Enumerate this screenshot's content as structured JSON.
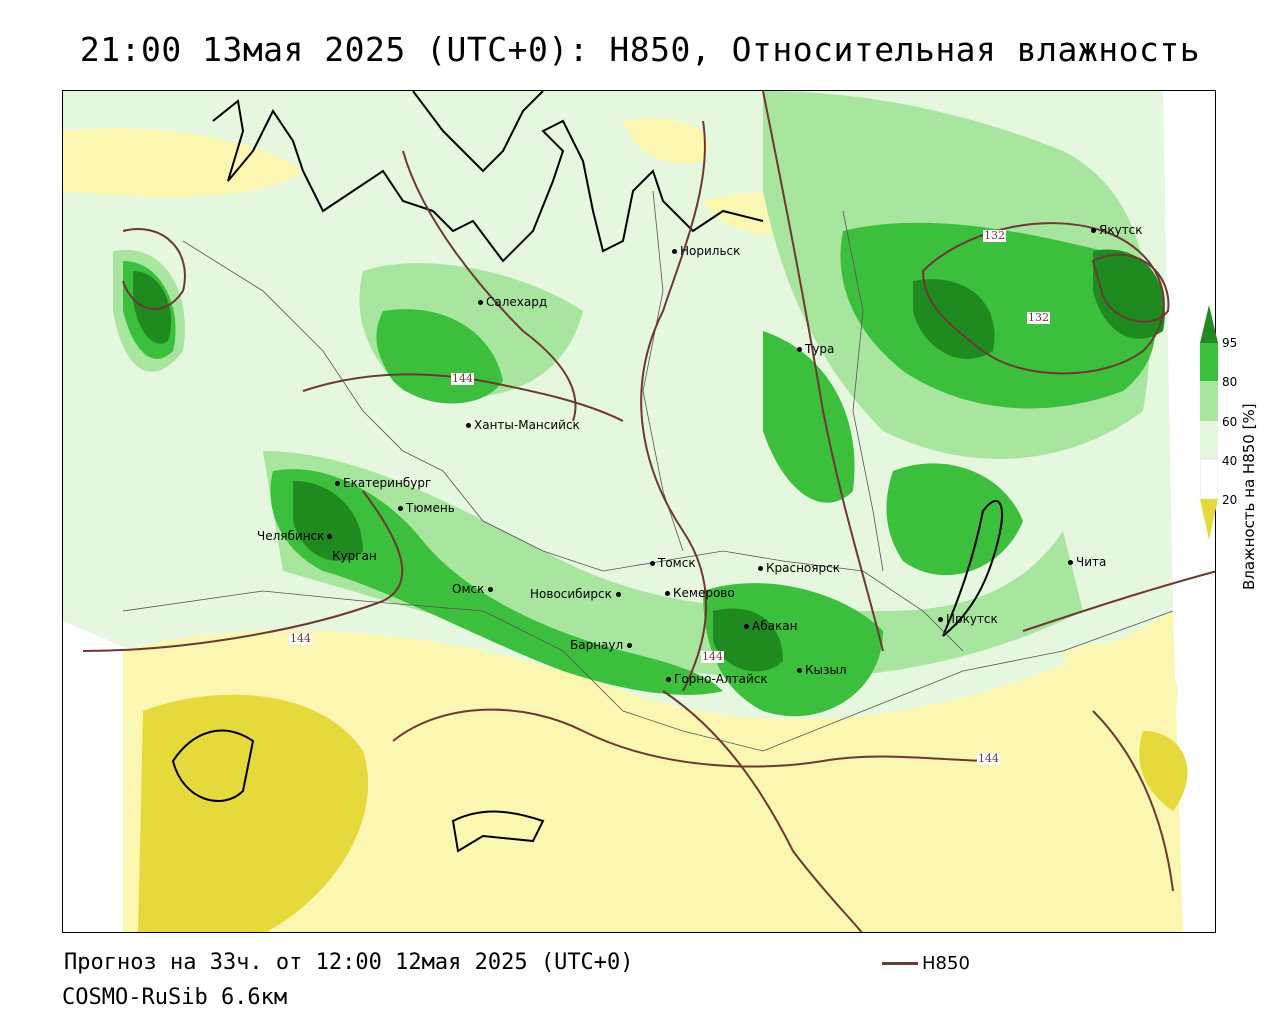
{
  "title": "21:00 13мая 2025 (UTC+0): H850, Относительная влажность",
  "footer": {
    "forecast": "Прогноз на 33ч. от 12:00 12мая 2025 (UTC+0)",
    "model": "COSMO-RuSib 6.6км",
    "legend_label": "H850"
  },
  "colorbar": {
    "title": "Влажность на H850 [%]",
    "ticks": [
      "95",
      "80",
      "60",
      "40",
      "20"
    ],
    "colors": {
      "very_high": "#1f8a1f",
      "high": "#3cbf3c",
      "mid": "#a8e6a0",
      "low": "#e6f7e0",
      "dry": "#fbf7b0",
      "very_dry": "#e5d93c"
    }
  },
  "contour_color": "#6b3a33",
  "contour_labels": [
    "144",
    "132",
    "132",
    "144",
    "144",
    "144"
  ],
  "cities": [
    {
      "name": "Норильск"
    },
    {
      "name": "Якутск"
    },
    {
      "name": "Салехард"
    },
    {
      "name": "Тура"
    },
    {
      "name": "Ханты-Мансийск"
    },
    {
      "name": "Екатеринбург"
    },
    {
      "name": "Тюмень"
    },
    {
      "name": "Челябинск"
    },
    {
      "name": "Курган"
    },
    {
      "name": "Томск"
    },
    {
      "name": "Красноярск"
    },
    {
      "name": "Чита"
    },
    {
      "name": "Омск"
    },
    {
      "name": "Новосибирск"
    },
    {
      "name": "Кемерово"
    },
    {
      "name": "Иркутск"
    },
    {
      "name": "Абакан"
    },
    {
      "name": "Барнаул"
    },
    {
      "name": "Горно-Алтайск"
    },
    {
      "name": "Кызыл"
    }
  ]
}
